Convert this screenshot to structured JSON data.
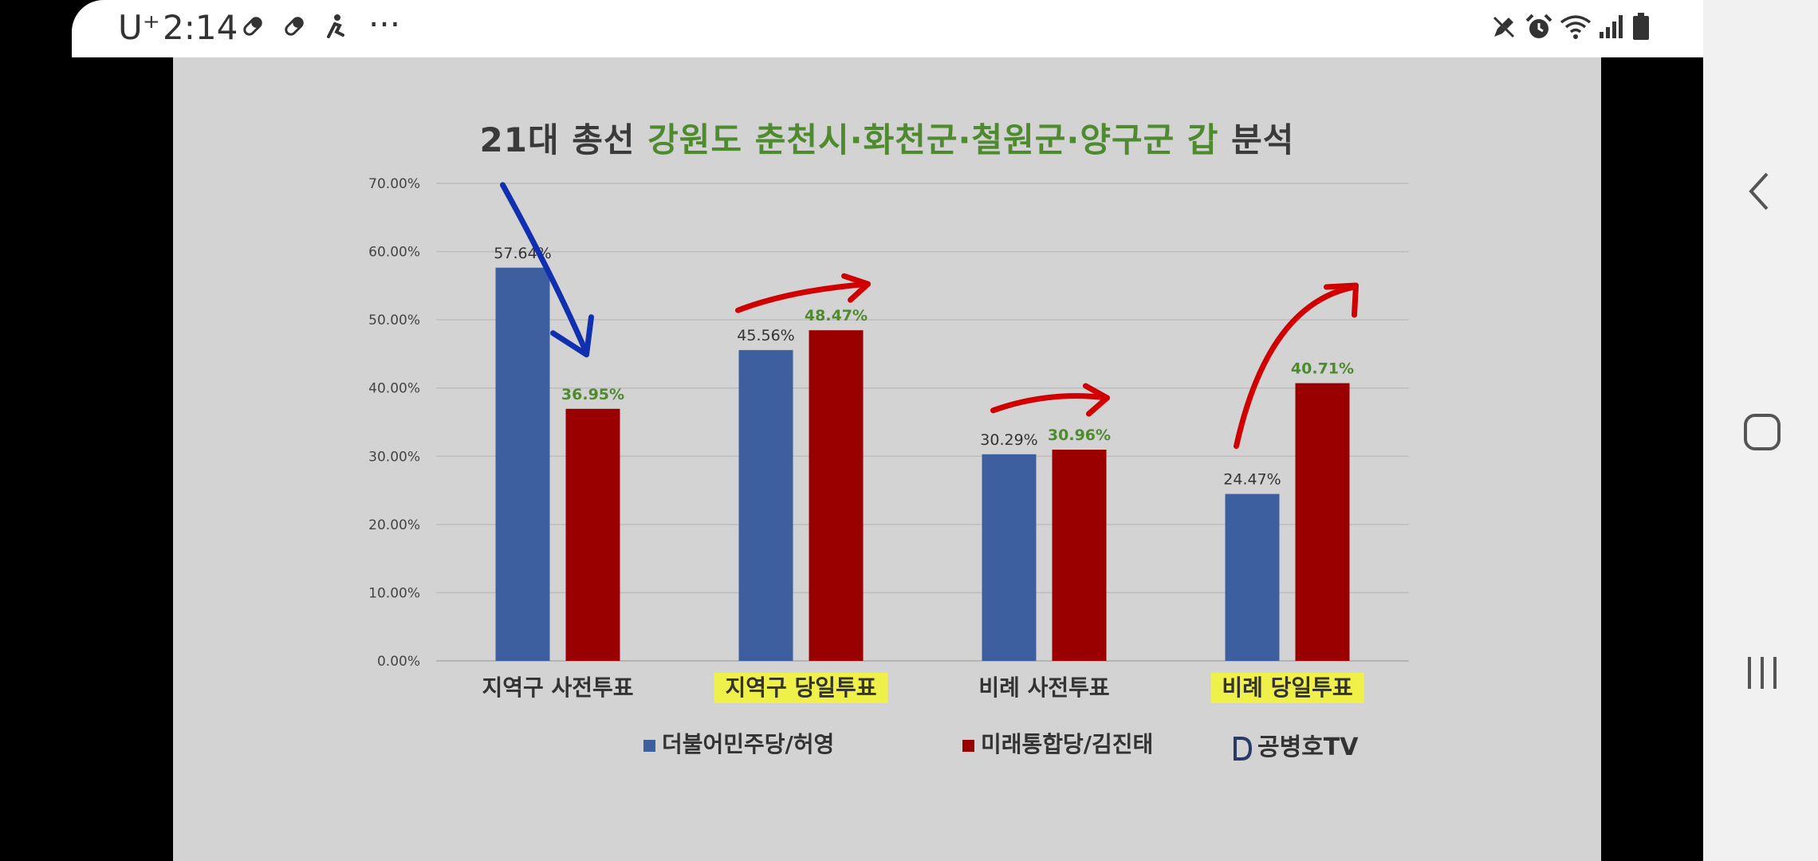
{
  "status_bar": {
    "carrier": "U⁺",
    "time": "2:14",
    "more": "···",
    "left_icons": [
      "pill-icon",
      "pill-icon",
      "accessibility-icon",
      "more-icon"
    ],
    "right_icons": [
      "pen-off-icon",
      "alarm-icon",
      "wifi-icon",
      "signal-icon",
      "battery-icon"
    ]
  },
  "navigation": {
    "buttons": [
      "back-button",
      "home-button",
      "recents-button"
    ]
  },
  "video": {
    "title_prefix": "21대 총선 ",
    "title_highlight": "강원도 춘천시·화천군·철원군·양구군 갑",
    "title_suffix": " 분석",
    "watermark": "공병호TV",
    "colors": {
      "blue": "#3d5fa0",
      "red": "#9b0000",
      "highlight": "#f0f04a",
      "title_green": "#4e8a2e"
    }
  },
  "chart_data": {
    "type": "bar",
    "title": "21대 총선 강원도 춘천시·화천군·철원군·양구군 갑 분석",
    "categories": [
      "지역구 사전투표",
      "지역구 당일투표",
      "비례 사전투표",
      "비례 당일투표"
    ],
    "highlighted_categories": [
      "지역구 당일투표",
      "비례 당일투표"
    ],
    "series": [
      {
        "name": "더불어민주당/허영",
        "color": "#3d5fa0",
        "values": [
          57.64,
          45.56,
          30.29,
          24.47
        ],
        "labels": [
          "57.64%",
          "45.56%",
          "30.29%",
          "24.47%"
        ]
      },
      {
        "name": "미래통합당/김진태",
        "color": "#9b0000",
        "values": [
          36.95,
          48.47,
          30.96,
          40.71
        ],
        "labels": [
          "36.95%",
          "48.47%",
          "30.96%",
          "40.71%"
        ]
      }
    ],
    "y_ticks": [
      "0.00%",
      "10.00%",
      "20.00%",
      "30.00%",
      "40.00%",
      "50.00%",
      "60.00%",
      "70.00%"
    ],
    "ylim": [
      0,
      70
    ],
    "grid": true,
    "legend": "bottom",
    "annotations": [
      {
        "type": "arrow",
        "color": "blue",
        "category": "지역구 사전투표",
        "direction": "down"
      },
      {
        "type": "arrow",
        "color": "red",
        "category": "지역구 당일투표",
        "direction": "up"
      },
      {
        "type": "arrow",
        "color": "red",
        "category": "비례 사전투표",
        "direction": "up"
      },
      {
        "type": "arrow",
        "color": "red",
        "category": "비례 당일투표",
        "direction": "up"
      }
    ]
  }
}
